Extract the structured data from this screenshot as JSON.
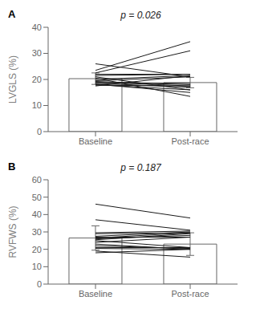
{
  "chart_data": [
    {
      "type": "bar",
      "title": "p = 0.026",
      "annotations": [
        "A"
      ],
      "ylabel": "LVGLS (%)",
      "categories": [
        "Baseline",
        "Post-race"
      ],
      "ylim": [
        0,
        40
      ],
      "yticks": [
        0,
        10,
        20,
        30,
        40
      ],
      "grid": false,
      "series": [
        {
          "type": "bar",
          "color": "#ffffff",
          "values": [
            20.3,
            18.8
          ],
          "errors": [
            2.2,
            2.0
          ]
        },
        {
          "type": "line",
          "color": "#1a1a1a",
          "values": [
            17.5,
            21.5
          ]
        },
        {
          "type": "line",
          "color": "#1a1a1a",
          "values": [
            17.8,
            17.5
          ]
        },
        {
          "type": "line",
          "color": "#1a1a1a",
          "values": [
            18.0,
            16.0
          ]
        },
        {
          "type": "line",
          "color": "#1a1a1a",
          "values": [
            18.2,
            15.0
          ]
        },
        {
          "type": "line",
          "color": "#1a1a1a",
          "values": [
            18.5,
            17.0
          ]
        },
        {
          "type": "line",
          "color": "#1a1a1a",
          "values": [
            18.8,
            18.5
          ]
        },
        {
          "type": "line",
          "color": "#1a1a1a",
          "values": [
            19.0,
            17.5
          ]
        },
        {
          "type": "line",
          "color": "#1a1a1a",
          "values": [
            19.2,
            18.0
          ]
        },
        {
          "type": "line",
          "color": "#1a1a1a",
          "values": [
            19.5,
            21.0
          ]
        },
        {
          "type": "line",
          "color": "#1a1a1a",
          "values": [
            20.0,
            21.5
          ]
        },
        {
          "type": "line",
          "color": "#1a1a1a",
          "values": [
            20.5,
            13.5
          ]
        },
        {
          "type": "line",
          "color": "#1a1a1a",
          "values": [
            21.0,
            16.0
          ]
        },
        {
          "type": "line",
          "color": "#1a1a1a",
          "values": [
            21.5,
            22.0
          ]
        },
        {
          "type": "line",
          "color": "#1a1a1a",
          "values": [
            22.0,
            22.0
          ]
        },
        {
          "type": "line",
          "color": "#1a1a1a",
          "values": [
            22.5,
            31.0
          ]
        },
        {
          "type": "line",
          "color": "#1a1a1a",
          "values": [
            23.5,
            34.5
          ]
        },
        {
          "type": "line",
          "color": "#1a1a1a",
          "values": [
            26.0,
            21.0
          ]
        }
      ]
    },
    {
      "type": "bar",
      "title": "p = 0.187",
      "annotations": [
        "B"
      ],
      "ylabel": "RVFWS (%)",
      "categories": [
        "Baseline",
        "Post-race"
      ],
      "ylim": [
        0,
        60
      ],
      "yticks": [
        0,
        10,
        20,
        30,
        40,
        50,
        60
      ],
      "grid": false,
      "series": [
        {
          "type": "bar",
          "color": "#ffffff",
          "values": [
            26.5,
            23.0
          ],
          "errors": [
            7.0,
            6.5
          ]
        },
        {
          "type": "line",
          "color": "#1a1a1a",
          "values": [
            18.0,
            20.0
          ]
        },
        {
          "type": "line",
          "color": "#1a1a1a",
          "values": [
            19.0,
            15.5
          ]
        },
        {
          "type": "line",
          "color": "#1a1a1a",
          "values": [
            20.5,
            20.0
          ]
        },
        {
          "type": "line",
          "color": "#1a1a1a",
          "values": [
            21.0,
            21.0
          ]
        },
        {
          "type": "line",
          "color": "#1a1a1a",
          "values": [
            22.0,
            20.5
          ]
        },
        {
          "type": "line",
          "color": "#1a1a1a",
          "values": [
            23.0,
            20.0
          ]
        },
        {
          "type": "line",
          "color": "#1a1a1a",
          "values": [
            24.0,
            27.0
          ]
        },
        {
          "type": "line",
          "color": "#1a1a1a",
          "values": [
            25.0,
            21.0
          ]
        },
        {
          "type": "line",
          "color": "#1a1a1a",
          "values": [
            25.5,
            29.0
          ]
        },
        {
          "type": "line",
          "color": "#1a1a1a",
          "values": [
            26.0,
            28.0
          ]
        },
        {
          "type": "line",
          "color": "#1a1a1a",
          "values": [
            26.5,
            29.5
          ]
        },
        {
          "type": "line",
          "color": "#1a1a1a",
          "values": [
            27.0,
            27.0
          ]
        },
        {
          "type": "line",
          "color": "#1a1a1a",
          "values": [
            27.5,
            30.0
          ]
        },
        {
          "type": "line",
          "color": "#1a1a1a",
          "values": [
            29.0,
            29.5
          ]
        },
        {
          "type": "line",
          "color": "#1a1a1a",
          "values": [
            29.5,
            30.5
          ]
        },
        {
          "type": "line",
          "color": "#1a1a1a",
          "values": [
            37.0,
            31.0
          ]
        },
        {
          "type": "line",
          "color": "#1a1a1a",
          "values": [
            46.0,
            38.0
          ]
        }
      ]
    }
  ]
}
